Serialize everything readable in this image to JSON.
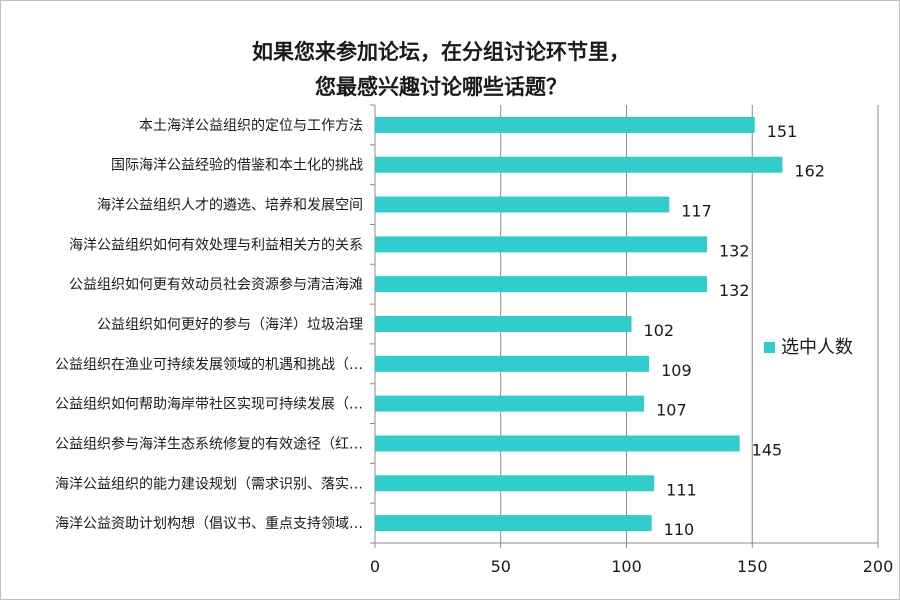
{
  "chart_data": {
    "type": "bar",
    "orientation": "horizontal",
    "title": [
      "如果您来参加论坛，在分组讨论环节里，",
      "您最感兴趣讨论哪些话题？"
    ],
    "categories": [
      "本土海洋公益组织的定位与工作方法",
      "国际海洋公益经验的借鉴和本土化的挑战",
      "海洋公益组织人才的遴选、培养和发展空间",
      "海洋公益组织如何有效处理与利益相关方的关系",
      "公益组织如何更有效动员社会资源参与清洁海滩",
      "公益组织如何更好的参与（海洋）垃圾治理",
      "公益组织在渔业可持续发展领域的机遇和挑战（…",
      "公益组织如何帮助海岸带社区实现可持续发展（…",
      "公益组织参与海洋生态系统修复的有效途径（红…",
      "海洋公益组织的能力建设规划（需求识别、落实…",
      "海洋公益资助计划构想（倡议书、重点支持领域…"
    ],
    "series": [
      {
        "name": "选中人数",
        "values": [
          151,
          162,
          117,
          132,
          132,
          102,
          109,
          107,
          145,
          111,
          110
        ],
        "color": "#33cccc"
      }
    ],
    "xlim": [
      0,
      200
    ],
    "x_ticks": [
      0,
      50,
      100,
      150,
      200
    ],
    "xlabel": "",
    "ylabel": "",
    "grid": "vertical",
    "legend": "right"
  }
}
